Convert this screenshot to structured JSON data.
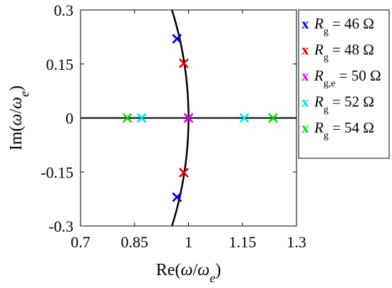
{
  "chart_data": {
    "type": "scatter",
    "xlabel": "Re(ω/ωe)",
    "ylabel": "Im(ω/ωe)",
    "xlim": [
      0.7,
      1.3
    ],
    "ylim": [
      -0.3,
      0.3
    ],
    "xticks": [
      "0.7",
      "0.85",
      "1",
      "1.15",
      "1.3"
    ],
    "yticks": [
      "0.3",
      "0.15",
      "0",
      "-0.15",
      "-0.3"
    ],
    "grid": false,
    "legend_position": "outside-right",
    "marker": "x",
    "reference_curve": {
      "name": "unit circle |ω/ωe| = 1",
      "color": "#000000"
    },
    "reference_line": {
      "y": 0,
      "color": "#000000"
    },
    "series": [
      {
        "name": "R_g = 46 Ω",
        "label_prefix": "R",
        "label_sub": "g",
        "label_value": " = 46 Ω",
        "color": "#0000cc",
        "points": [
          [
            0.968,
            0.22
          ],
          [
            0.968,
            -0.22
          ]
        ]
      },
      {
        "name": "R_g = 48 Ω",
        "label_prefix": "R",
        "label_sub": "g",
        "label_value": " = 48 Ω",
        "color": "#dd0000",
        "points": [
          [
            0.987,
            0.152
          ],
          [
            0.987,
            -0.152
          ]
        ]
      },
      {
        "name": "R_g,e = 50 Ω",
        "label_prefix": "R",
        "label_sub": "g,e",
        "label_value": " = 50 Ω",
        "color": "#ee00ee",
        "points": [
          [
            1.0,
            0.0
          ],
          [
            1.0,
            0.0
          ]
        ]
      },
      {
        "name": "R_g = 52 Ω",
        "label_prefix": "R",
        "label_sub": "g",
        "label_value": " = 52 Ω",
        "color": "#00e5e5",
        "points": [
          [
            0.87,
            0.0
          ],
          [
            1.155,
            0.0
          ]
        ]
      },
      {
        "name": "R_g = 54 Ω",
        "label_prefix": "R",
        "label_sub": "g",
        "label_value": " = 54 Ω",
        "color": "#00dd00",
        "points": [
          [
            0.83,
            0.0
          ],
          [
            1.235,
            0.0
          ]
        ]
      }
    ]
  }
}
